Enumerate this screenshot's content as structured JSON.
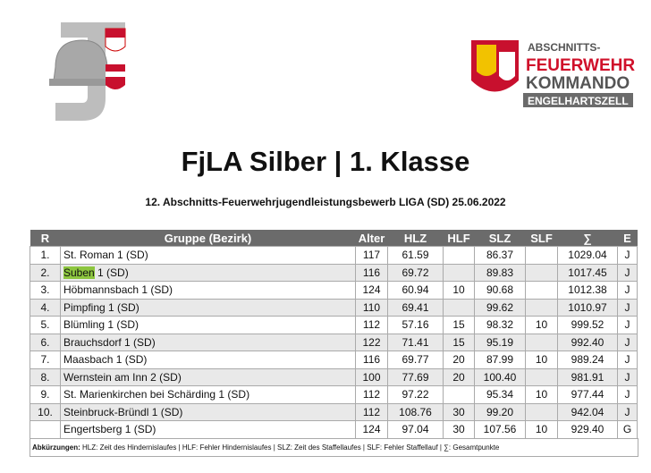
{
  "header": {
    "logo_lines": [
      "ABSCHNITTS-",
      "FEUERWEHR",
      "KOMMANDO",
      "ENGELHARTSZELL"
    ],
    "title": "FjLA Silber | 1. Klasse",
    "subtitle": "12. Abschnitts-Feuerwehrjugendleistungsbewerb LIGA (SD) 25.06.2022"
  },
  "table": {
    "columns": [
      "R",
      "Gruppe (Bezirk)",
      "Alter",
      "HLZ",
      "HLF",
      "SLZ",
      "SLF",
      "∑",
      "E"
    ],
    "rows": [
      [
        "1.",
        "St. Roman 1 (SD)",
        "117",
        "61.59",
        "",
        "86.37",
        "",
        "1029.04",
        "J"
      ],
      [
        "2.",
        [
          "Suben",
          " 1 (SD)"
        ],
        "116",
        "69.72",
        "",
        "89.83",
        "",
        "1017.45",
        "J"
      ],
      [
        "3.",
        "Höbmannsbach 1 (SD)",
        "124",
        "60.94",
        "10",
        "90.68",
        "",
        "1012.38",
        "J"
      ],
      [
        "4.",
        "Pimpfing 1 (SD)",
        "110",
        "69.41",
        "",
        "99.62",
        "",
        "1010.97",
        "J"
      ],
      [
        "5.",
        "Blümling 1 (SD)",
        "112",
        "57.16",
        "15",
        "98.32",
        "10",
        "999.52",
        "J"
      ],
      [
        "6.",
        "Brauchsdorf 1 (SD)",
        "122",
        "71.41",
        "15",
        "95.19",
        "",
        "992.40",
        "J"
      ],
      [
        "7.",
        "Maasbach 1 (SD)",
        "116",
        "69.77",
        "20",
        "87.99",
        "10",
        "989.24",
        "J"
      ],
      [
        "8.",
        "Wernstein am Inn 2 (SD)",
        "100",
        "77.69",
        "20",
        "100.40",
        "",
        "981.91",
        "J"
      ],
      [
        "9.",
        "St. Marienkirchen bei Schärding 1 (SD)",
        "112",
        "97.22",
        "",
        "95.34",
        "10",
        "977.44",
        "J"
      ],
      [
        "10.",
        "Steinbruck-Bründl 1 (SD)",
        "112",
        "108.76",
        "30",
        "99.20",
        "",
        "942.04",
        "J"
      ],
      [
        "",
        "Engertsberg 1 (SD)",
        "124",
        "97.04",
        "30",
        "107.56",
        "10",
        "929.40",
        "G"
      ]
    ]
  },
  "footer": {
    "label": "Abkürzungen:",
    "text": " HLZ: Zeit des Hindernislaufes | HLF: Fehler Hindernislaufes | SLZ: Zeit des Staffellaufes | SLF: Fehler Staffellauf | ∑: Gesamtpunkte"
  }
}
